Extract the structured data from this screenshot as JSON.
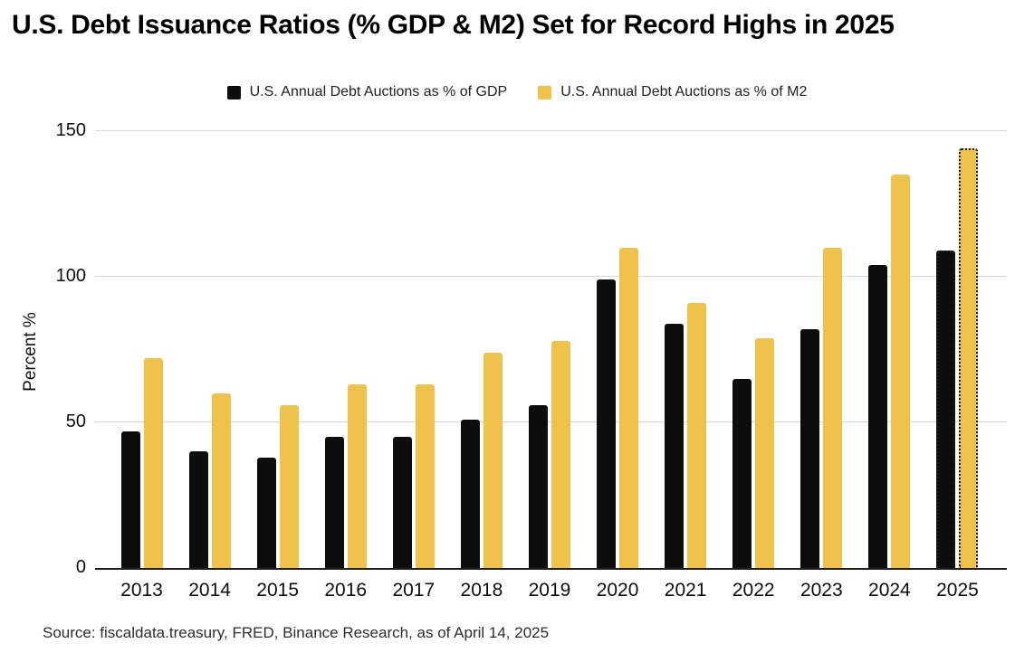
{
  "title": "U.S. Debt Issuance Ratios (% GDP & M2) Set for Record Highs in 2025",
  "source_note": "Source: fiscaldata.treasury, FRED, Binance Research, as of April 14, 2025",
  "colors": {
    "gdp_series": "#0d0d0d",
    "m2_series": "#efc24b",
    "gridline": "#d8d8d8",
    "axis_line": "#1f1f1f",
    "background": "#ffffff"
  },
  "chart_data": {
    "type": "bar",
    "title": "U.S. Debt Issuance Ratios (% GDP & M2) Set for Record Highs in 2025",
    "xlabel": "",
    "ylabel": "Percent %",
    "ylim": [
      0,
      150
    ],
    "yticks": [
      0,
      50,
      100,
      150
    ],
    "grid": "horizontal",
    "legend_position": "top",
    "categories": [
      "2013",
      "2014",
      "2015",
      "2016",
      "2017",
      "2018",
      "2019",
      "2020",
      "2021",
      "2022",
      "2023",
      "2024",
      "2025"
    ],
    "series": [
      {
        "name": "U.S. Annual Debt Auctions as % of GDP",
        "color": "#0d0d0d",
        "values": [
          47,
          40,
          38,
          45,
          45,
          51,
          56,
          99,
          84,
          65,
          82,
          104,
          109
        ]
      },
      {
        "name": "U.S. Annual Debt Auctions as % of  M2",
        "color": "#efc24b",
        "values": [
          72,
          60,
          56,
          63,
          63,
          74,
          78,
          110,
          91,
          79,
          110,
          135,
          144
        ]
      }
    ],
    "annotations": {
      "projected_category": "2025",
      "projected_style": "dotted-outline"
    }
  }
}
